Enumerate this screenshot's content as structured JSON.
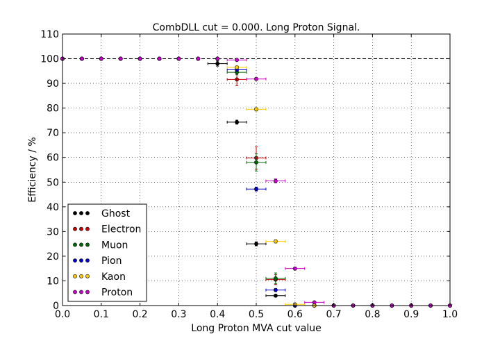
{
  "chart_data": {
    "type": "scatter",
    "title": "CombDLL cut = 0.000. Long Proton Signal.",
    "xlabel": "Long Proton MVA cut value",
    "ylabel": "Efficiency / %",
    "xlim": [
      0.0,
      1.0
    ],
    "ylim": [
      0,
      110
    ],
    "xticks": [
      "0.0",
      "0.1",
      "0.2",
      "0.3",
      "0.4",
      "0.5",
      "0.6",
      "0.7",
      "0.8",
      "0.9",
      "1.0"
    ],
    "yticks": [
      "0",
      "10",
      "20",
      "30",
      "40",
      "50",
      "60",
      "70",
      "80",
      "90",
      "100",
      "110"
    ],
    "grid": true,
    "reference_line": 100,
    "legend_position": "lower-left",
    "series": [
      {
        "name": "Ghost",
        "color": "#000000",
        "points": [
          [
            0.0,
            100
          ],
          [
            0.05,
            100
          ],
          [
            0.1,
            100
          ],
          [
            0.15,
            100
          ],
          [
            0.2,
            100
          ],
          [
            0.25,
            100
          ],
          [
            0.3,
            100
          ],
          [
            0.35,
            100
          ],
          [
            0.4,
            98
          ],
          [
            0.45,
            74.3
          ],
          [
            0.5,
            25
          ],
          [
            0.55,
            4
          ],
          [
            0.6,
            0
          ],
          [
            0.65,
            0
          ],
          [
            0.7,
            0
          ],
          [
            0.75,
            0
          ],
          [
            0.8,
            0
          ],
          [
            0.85,
            0
          ],
          [
            0.9,
            0
          ],
          [
            0.95,
            0
          ],
          [
            1.0,
            0
          ]
        ],
        "xerr": [
          0,
          0,
          0,
          0,
          0,
          0,
          0,
          0,
          0.025,
          0.025,
          0.025,
          0.025,
          0,
          0,
          0,
          0,
          0,
          0,
          0,
          0,
          0
        ],
        "yerr": [
          0,
          0,
          0,
          0,
          0,
          0,
          0,
          0,
          1,
          0.8,
          0.8,
          0.5,
          0,
          0,
          0,
          0,
          0,
          0,
          0,
          0,
          0
        ]
      },
      {
        "name": "Electron",
        "color": "#cc0000",
        "points": [
          [
            0.0,
            100
          ],
          [
            0.05,
            100
          ],
          [
            0.1,
            100
          ],
          [
            0.15,
            100
          ],
          [
            0.2,
            100
          ],
          [
            0.25,
            100
          ],
          [
            0.3,
            100
          ],
          [
            0.35,
            100
          ],
          [
            0.4,
            100
          ],
          [
            0.45,
            91.6
          ],
          [
            0.5,
            59.8
          ],
          [
            0.55,
            10.5
          ],
          [
            0.6,
            0
          ],
          [
            0.65,
            0
          ],
          [
            0.7,
            0
          ],
          [
            0.75,
            0
          ],
          [
            0.8,
            0
          ],
          [
            0.85,
            0
          ],
          [
            0.9,
            0
          ],
          [
            0.95,
            0
          ],
          [
            1.0,
            0
          ]
        ],
        "xerr": [
          0,
          0,
          0,
          0,
          0,
          0,
          0,
          0,
          0,
          0.025,
          0.025,
          0.025,
          0,
          0,
          0,
          0,
          0,
          0,
          0,
          0,
          0
        ],
        "yerr": [
          0,
          0,
          0,
          0,
          0,
          0,
          0,
          0,
          0,
          2.5,
          4.5,
          2,
          0,
          0,
          0,
          0,
          0,
          0,
          0,
          0,
          0
        ]
      },
      {
        "name": "Muon",
        "color": "#006600",
        "points": [
          [
            0.0,
            100
          ],
          [
            0.05,
            100
          ],
          [
            0.1,
            100
          ],
          [
            0.15,
            100
          ],
          [
            0.2,
            100
          ],
          [
            0.25,
            100
          ],
          [
            0.3,
            100
          ],
          [
            0.35,
            100
          ],
          [
            0.4,
            100
          ],
          [
            0.45,
            94.5
          ],
          [
            0.5,
            58
          ],
          [
            0.55,
            11
          ],
          [
            0.6,
            0
          ],
          [
            0.65,
            0
          ],
          [
            0.7,
            0
          ],
          [
            0.75,
            0
          ],
          [
            0.8,
            0
          ],
          [
            0.85,
            0
          ],
          [
            0.9,
            0
          ],
          [
            0.95,
            0
          ],
          [
            1.0,
            0
          ]
        ],
        "xerr": [
          0,
          0,
          0,
          0,
          0,
          0,
          0,
          0,
          0,
          0.025,
          0.025,
          0.025,
          0,
          0,
          0,
          0,
          0,
          0,
          0,
          0,
          0
        ],
        "yerr": [
          0,
          0,
          0,
          0,
          0,
          0,
          0,
          0,
          0,
          1,
          3.5,
          2.2,
          0,
          0,
          0,
          0,
          0,
          0,
          0,
          0,
          0
        ]
      },
      {
        "name": "Pion",
        "color": "#0000cc",
        "points": [
          [
            0.0,
            100
          ],
          [
            0.05,
            100
          ],
          [
            0.1,
            100
          ],
          [
            0.15,
            100
          ],
          [
            0.2,
            100
          ],
          [
            0.25,
            100
          ],
          [
            0.3,
            100
          ],
          [
            0.35,
            100
          ],
          [
            0.4,
            100
          ],
          [
            0.45,
            95.5
          ],
          [
            0.5,
            47.2
          ],
          [
            0.55,
            6.3
          ],
          [
            0.6,
            0
          ],
          [
            0.65,
            0
          ],
          [
            0.7,
            0
          ],
          [
            0.75,
            0
          ],
          [
            0.8,
            0
          ],
          [
            0.85,
            0
          ],
          [
            0.9,
            0
          ],
          [
            0.95,
            0
          ],
          [
            1.0,
            0
          ]
        ],
        "xerr": [
          0,
          0,
          0,
          0,
          0,
          0,
          0,
          0,
          0,
          0.025,
          0.025,
          0.025,
          0,
          0,
          0,
          0,
          0,
          0,
          0,
          0,
          0
        ],
        "yerr": [
          0,
          0,
          0,
          0,
          0,
          0,
          0,
          0,
          0,
          0.6,
          0.8,
          0.6,
          0,
          0,
          0,
          0,
          0,
          0,
          0,
          0,
          0
        ]
      },
      {
        "name": "Kaon",
        "color": "#ffcc00",
        "points": [
          [
            0.0,
            100
          ],
          [
            0.05,
            100
          ],
          [
            0.1,
            100
          ],
          [
            0.15,
            100
          ],
          [
            0.2,
            100
          ],
          [
            0.25,
            100
          ],
          [
            0.3,
            100
          ],
          [
            0.35,
            100
          ],
          [
            0.4,
            100
          ],
          [
            0.45,
            96.5
          ],
          [
            0.5,
            79.5
          ],
          [
            0.55,
            26
          ],
          [
            0.6,
            0.5
          ],
          [
            0.65,
            0
          ],
          [
            0.7,
            0
          ],
          [
            0.75,
            0
          ],
          [
            0.8,
            0
          ],
          [
            0.85,
            0
          ],
          [
            0.9,
            0
          ],
          [
            0.95,
            0
          ],
          [
            1.0,
            0
          ]
        ],
        "xerr": [
          0,
          0,
          0,
          0,
          0,
          0,
          0,
          0,
          0,
          0.025,
          0.025,
          0.025,
          0.025,
          0,
          0,
          0,
          0,
          0,
          0,
          0,
          0
        ],
        "yerr": [
          0,
          0,
          0,
          0,
          0,
          0,
          0,
          0,
          0,
          0.5,
          0.7,
          0.7,
          0.3,
          0,
          0,
          0,
          0,
          0,
          0,
          0,
          0
        ]
      },
      {
        "name": "Proton",
        "color": "#cc00cc",
        "points": [
          [
            0.0,
            100
          ],
          [
            0.05,
            100
          ],
          [
            0.1,
            100
          ],
          [
            0.15,
            100
          ],
          [
            0.2,
            100
          ],
          [
            0.25,
            100
          ],
          [
            0.3,
            100
          ],
          [
            0.35,
            100
          ],
          [
            0.4,
            100
          ],
          [
            0.45,
            99.5
          ],
          [
            0.5,
            91.8
          ],
          [
            0.55,
            50.5
          ],
          [
            0.6,
            15
          ],
          [
            0.65,
            1.3
          ],
          [
            0.7,
            0
          ],
          [
            0.75,
            0
          ],
          [
            0.8,
            0
          ],
          [
            0.85,
            0
          ],
          [
            0.9,
            0
          ],
          [
            0.95,
            0
          ],
          [
            1.0,
            0
          ]
        ],
        "xerr": [
          0,
          0,
          0,
          0,
          0,
          0,
          0,
          0,
          0,
          0.025,
          0.025,
          0.025,
          0.025,
          0.025,
          0,
          0,
          0,
          0,
          0,
          0,
          0
        ],
        "yerr": [
          0,
          0,
          0,
          0,
          0,
          0,
          0,
          0,
          0,
          0.3,
          0.5,
          0.8,
          0.6,
          0.3,
          0,
          0,
          0,
          0,
          0,
          0,
          0
        ]
      }
    ]
  }
}
